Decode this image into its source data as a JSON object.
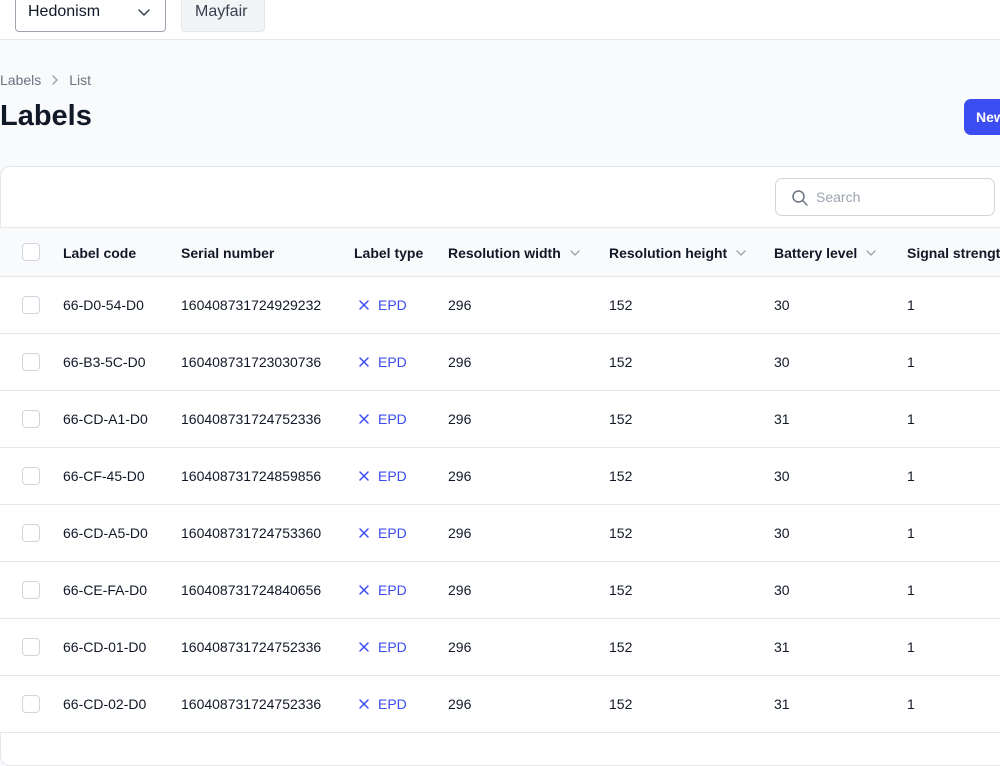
{
  "topbar": {
    "organization": "Hedonism",
    "location": "Mayfair"
  },
  "breadcrumb": [
    "Labels",
    "List"
  ],
  "page_title": "Labels",
  "new_button_label": "New",
  "search": {
    "placeholder": "Search",
    "value": ""
  },
  "columns": [
    {
      "label": "Label code",
      "sortable": false
    },
    {
      "label": "Serial number",
      "sortable": false
    },
    {
      "label": "Label type",
      "sortable": false
    },
    {
      "label": "Resolution width",
      "sortable": true
    },
    {
      "label": "Resolution height",
      "sortable": true
    },
    {
      "label": "Battery level",
      "sortable": true
    },
    {
      "label": "Signal strength",
      "sortable": false
    }
  ],
  "rows": [
    {
      "code": "66-D0-54-D0",
      "serial": "160408731724929232",
      "type": "EPD",
      "width": "296",
      "height": "152",
      "battery": "30",
      "signal": "1"
    },
    {
      "code": "66-B3-5C-D0",
      "serial": "160408731723030736",
      "type": "EPD",
      "width": "296",
      "height": "152",
      "battery": "30",
      "signal": "1"
    },
    {
      "code": "66-CD-A1-D0",
      "serial": "160408731724752336",
      "type": "EPD",
      "width": "296",
      "height": "152",
      "battery": "31",
      "signal": "1"
    },
    {
      "code": "66-CF-45-D0",
      "serial": "160408731724859856",
      "type": "EPD",
      "width": "296",
      "height": "152",
      "battery": "30",
      "signal": "1"
    },
    {
      "code": "66-CD-A5-D0",
      "serial": "160408731724753360",
      "type": "EPD",
      "width": "296",
      "height": "152",
      "battery": "30",
      "signal": "1"
    },
    {
      "code": "66-CE-FA-D0",
      "serial": "160408731724840656",
      "type": "EPD",
      "width": "296",
      "height": "152",
      "battery": "30",
      "signal": "1"
    },
    {
      "code": "66-CD-01-D0",
      "serial": "160408731724752336",
      "type": "EPD",
      "width": "296",
      "height": "152",
      "battery": "31",
      "signal": "1"
    },
    {
      "code": "66-CD-02-D0",
      "serial": "160408731724752336",
      "type": "EPD",
      "width": "296",
      "height": "152",
      "battery": "31",
      "signal": "1"
    }
  ],
  "colors": {
    "accent": "#3b4cf0",
    "border": "#e5e7eb",
    "muted_text": "#6b7280"
  },
  "icons": {
    "select_chevron": "chevron-down-icon",
    "breadcrumb_separator": "chevron-right-icon",
    "search": "search-icon",
    "sort": "chevron-down-icon",
    "label_type": "x-icon"
  }
}
